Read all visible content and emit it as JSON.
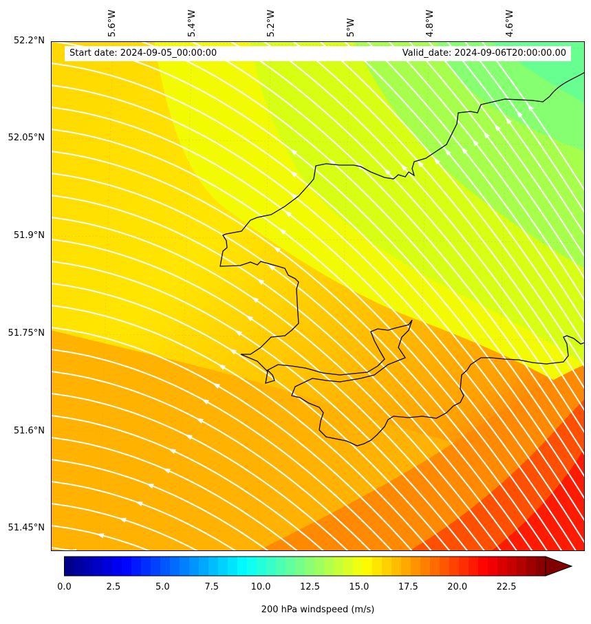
{
  "header": {
    "start_date": "Start date: 2024-09-05_00:00:00",
    "valid_date": "Valid_date: 2024-09-06T20:00:00.00"
  },
  "latitude_labels": [
    "52.2°N",
    "52.05°N",
    "51.9°N",
    "51.75°N",
    "51.6°N",
    "51.45°N"
  ],
  "longitude_labels": [
    "5.6°W",
    "5.4°W",
    "5.2°W",
    "5°W",
    "4.8°W",
    "4.6°W"
  ],
  "colorbar": {
    "label": "200 hPa windspeed (m/s)",
    "ticks": [
      "0.0",
      "2.5",
      "5.0",
      "7.5",
      "10.0",
      "12.5",
      "15.0",
      "17.5",
      "20.0",
      "22.5"
    ],
    "min": 0,
    "max": 25,
    "extend": "max"
  },
  "map": {
    "field": "windspeed",
    "colormap": "jet",
    "streamline_color": "#ffffff",
    "coastline_color": "#000000"
  }
}
